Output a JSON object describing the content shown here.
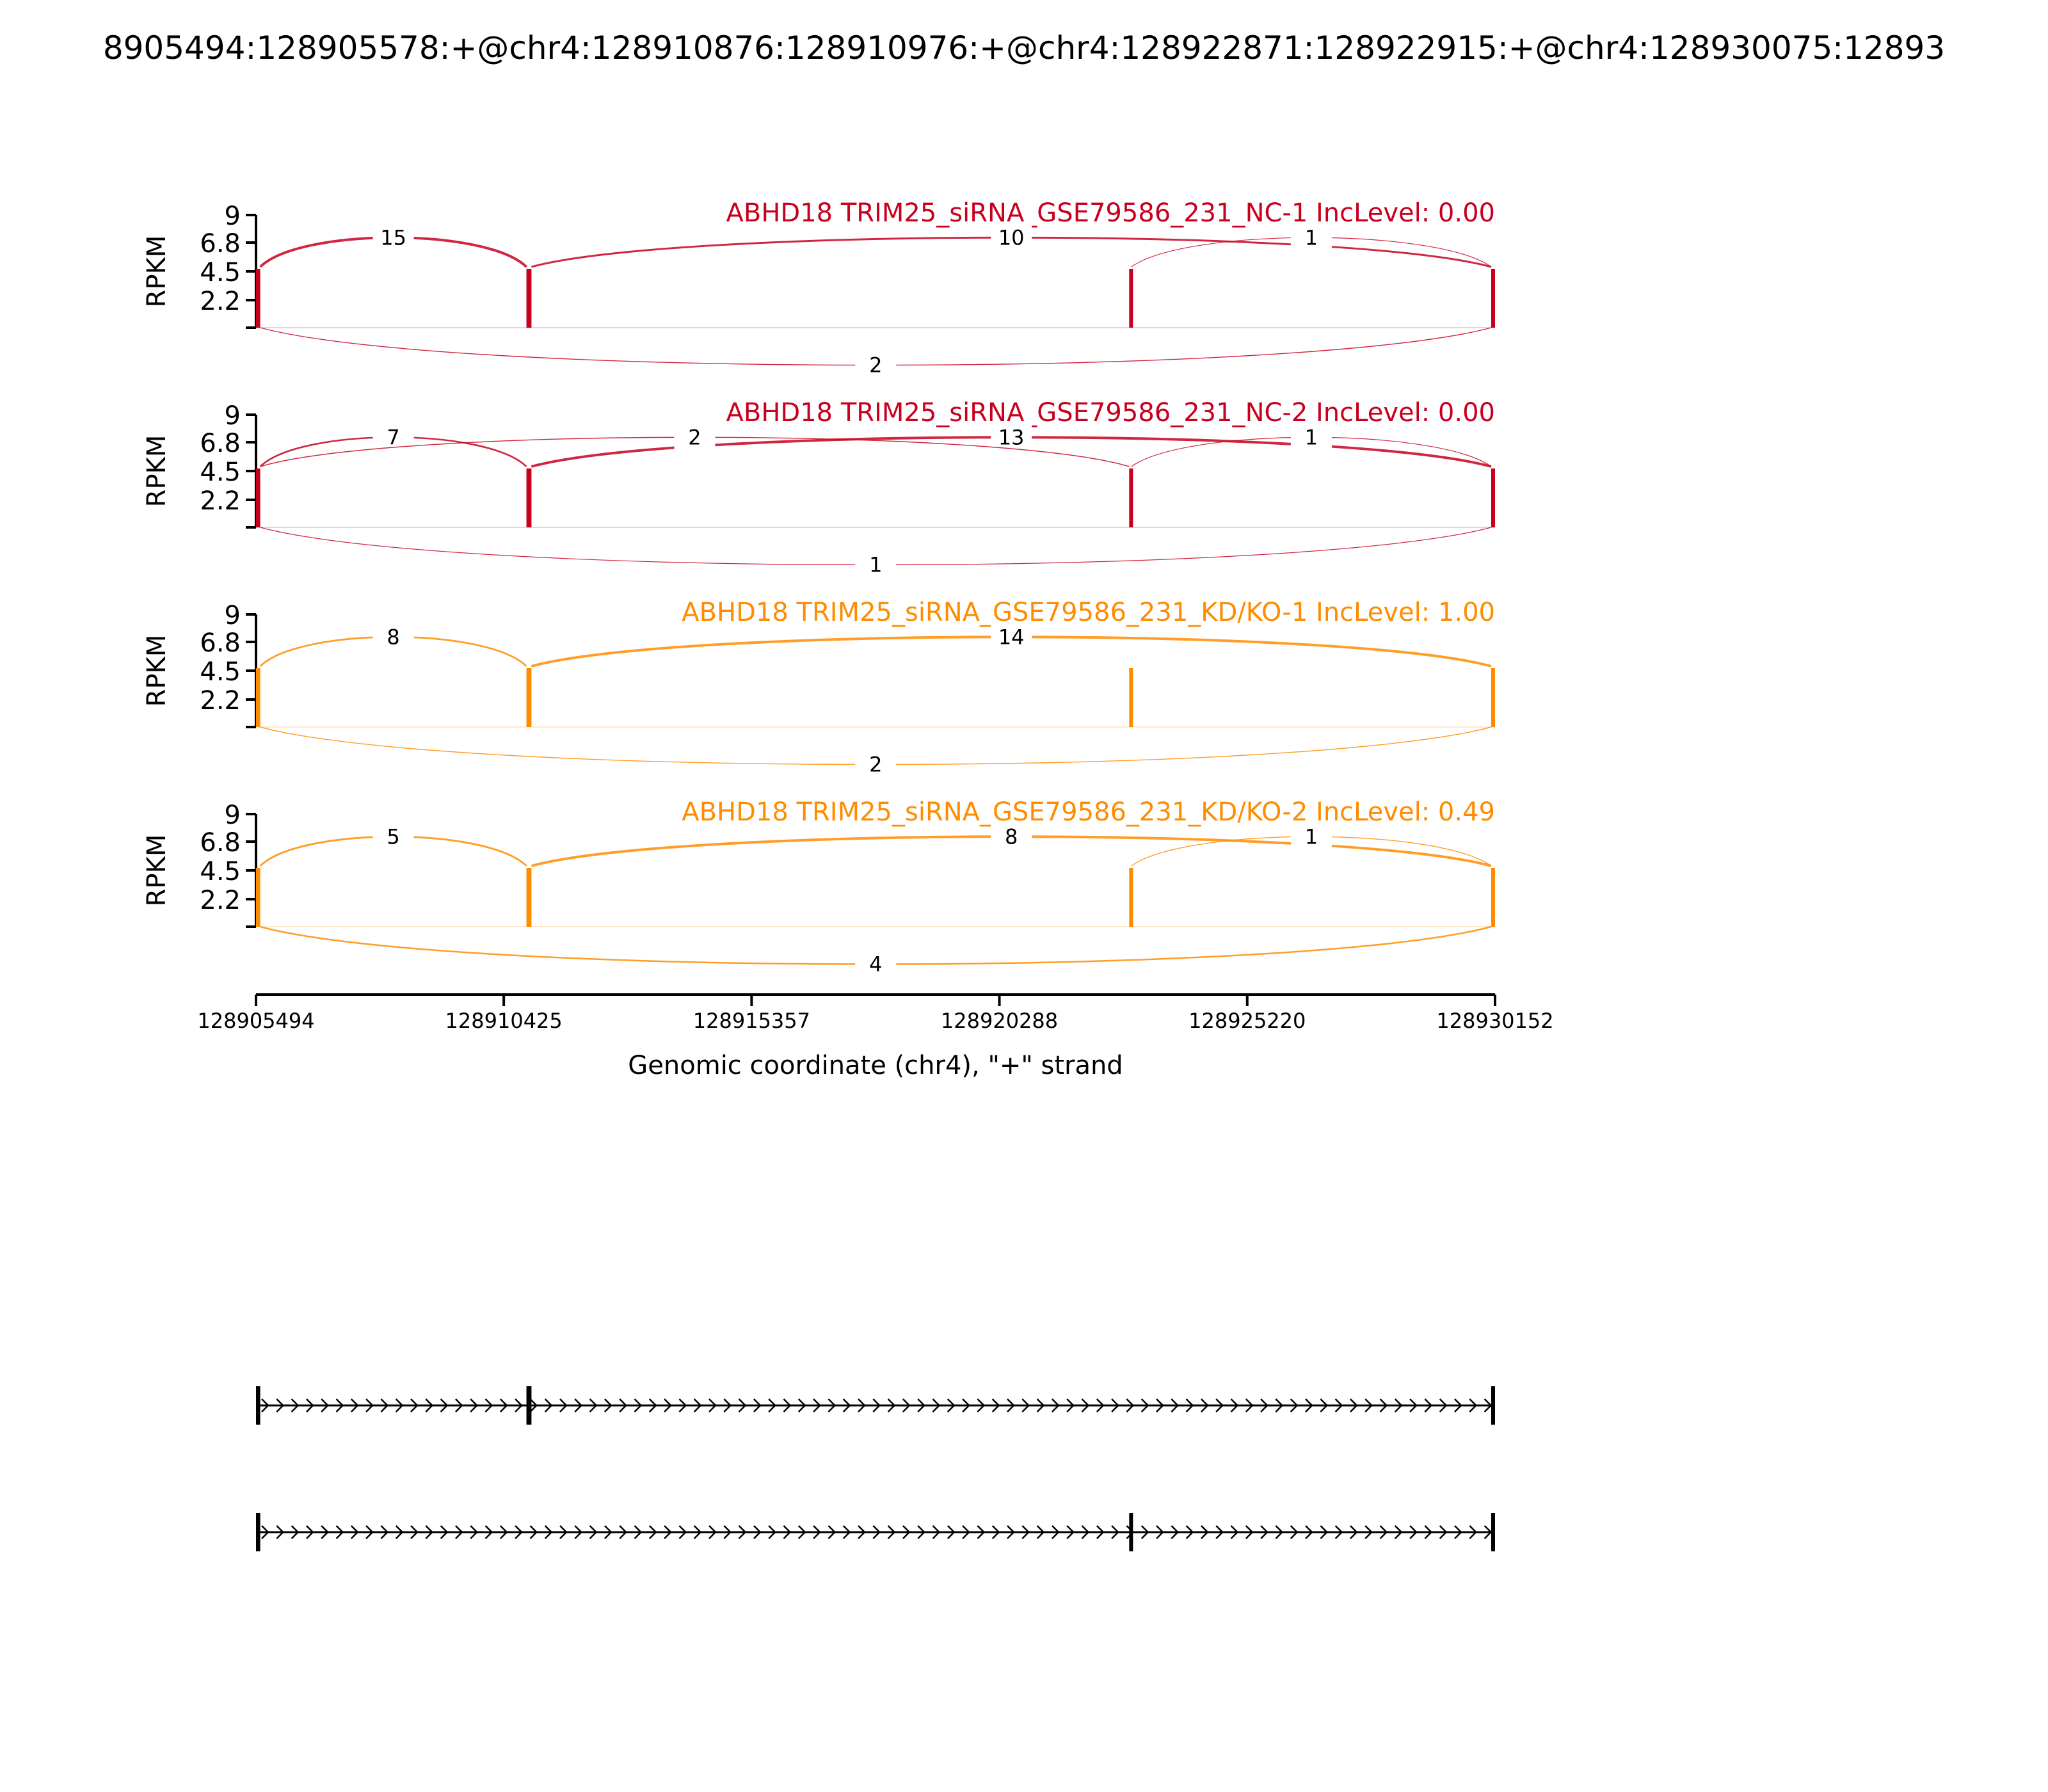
{
  "page_title": "8905494:128905578:+@chr4:128910876:128910976:+@chr4:128922871:128922915:+@chr4:128930075:12893",
  "chart_data": {
    "type": "sashimi",
    "xlabel": "Genomic coordinate (chr4), \"+\" strand",
    "xlim": [
      128905494,
      128930152
    ],
    "x_ticks": [
      "128905494",
      "128910425",
      "128915357",
      "128920288",
      "128925220",
      "128930152"
    ],
    "ylabel": "RPKM",
    "ylim": [
      0,
      9
    ],
    "y_ticks": [
      "9",
      "6.8",
      "4.5",
      "2.2"
    ],
    "exons": [
      {
        "start": 128905494,
        "end": 128905578
      },
      {
        "start": 128910876,
        "end": 128910976
      },
      {
        "start": 128922871,
        "end": 128922915
      },
      {
        "start": 128930075,
        "end": 128930152
      }
    ],
    "panels": [
      {
        "title": "ABHD18 TRIM25_siRNA_GSE79586_231_NC-1 IncLevel: 0.00",
        "color": "#c8001e",
        "junctions": [
          {
            "from": 128905578,
            "to": 128910876,
            "count": "15",
            "side": "above",
            "label_pos": 0.5
          },
          {
            "from": 128910976,
            "to": 128930075,
            "count": "10",
            "side": "above",
            "label_pos": 0.5
          },
          {
            "from": 128922915,
            "to": 128930075,
            "count": "1",
            "side": "above",
            "label_pos": 0.5
          },
          {
            "from": 128905578,
            "to": 128930075,
            "count": "2",
            "side": "below",
            "label_pos": 0.5
          }
        ]
      },
      {
        "title": "ABHD18 TRIM25_siRNA_GSE79586_231_NC-2 IncLevel: 0.00",
        "color": "#c8001e",
        "junctions": [
          {
            "from": 128905578,
            "to": 128910876,
            "count": "7",
            "side": "above",
            "label_pos": 0.5
          },
          {
            "from": 128910976,
            "to": 128930075,
            "count": "13",
            "side": "above",
            "label_pos": 0.5
          },
          {
            "from": 128905578,
            "to": 128922871,
            "count": "2",
            "side": "above",
            "label_pos": 0.5
          },
          {
            "from": 128922915,
            "to": 128930075,
            "count": "1",
            "side": "above",
            "label_pos": 0.5
          },
          {
            "from": 128905578,
            "to": 128930075,
            "count": "1",
            "side": "below",
            "label_pos": 0.5
          }
        ]
      },
      {
        "title": "ABHD18 TRIM25_siRNA_GSE79586_231_KD/KO-1 IncLevel: 1.00",
        "color": "#ff8c00",
        "junctions": [
          {
            "from": 128905578,
            "to": 128910876,
            "count": "8",
            "side": "above",
            "label_pos": 0.5
          },
          {
            "from": 128910976,
            "to": 128930075,
            "count": "14",
            "side": "above",
            "label_pos": 0.5
          },
          {
            "from": 128905578,
            "to": 128930075,
            "count": "2",
            "side": "below",
            "label_pos": 0.5
          }
        ]
      },
      {
        "title": "ABHD18 TRIM25_siRNA_GSE79586_231_KD/KO-2 IncLevel: 0.49",
        "color": "#ff8c00",
        "junctions": [
          {
            "from": 128905578,
            "to": 128910876,
            "count": "5",
            "side": "above",
            "label_pos": 0.5
          },
          {
            "from": 128910976,
            "to": 128930075,
            "count": "8",
            "side": "above",
            "label_pos": 0.5
          },
          {
            "from": 128922915,
            "to": 128930075,
            "count": "1",
            "side": "above",
            "label_pos": 0.5
          },
          {
            "from": 128905578,
            "to": 128930075,
            "count": "4",
            "side": "below",
            "label_pos": 0.5
          }
        ]
      }
    ],
    "isoforms": [
      {
        "exons": [
          [
            128905494,
            128905578
          ],
          [
            128910876,
            128910976
          ],
          [
            128930075,
            128930152
          ]
        ]
      },
      {
        "exons": [
          [
            128905494,
            128905578
          ],
          [
            128922871,
            128922915
          ],
          [
            128930075,
            128930152
          ]
        ]
      }
    ]
  }
}
